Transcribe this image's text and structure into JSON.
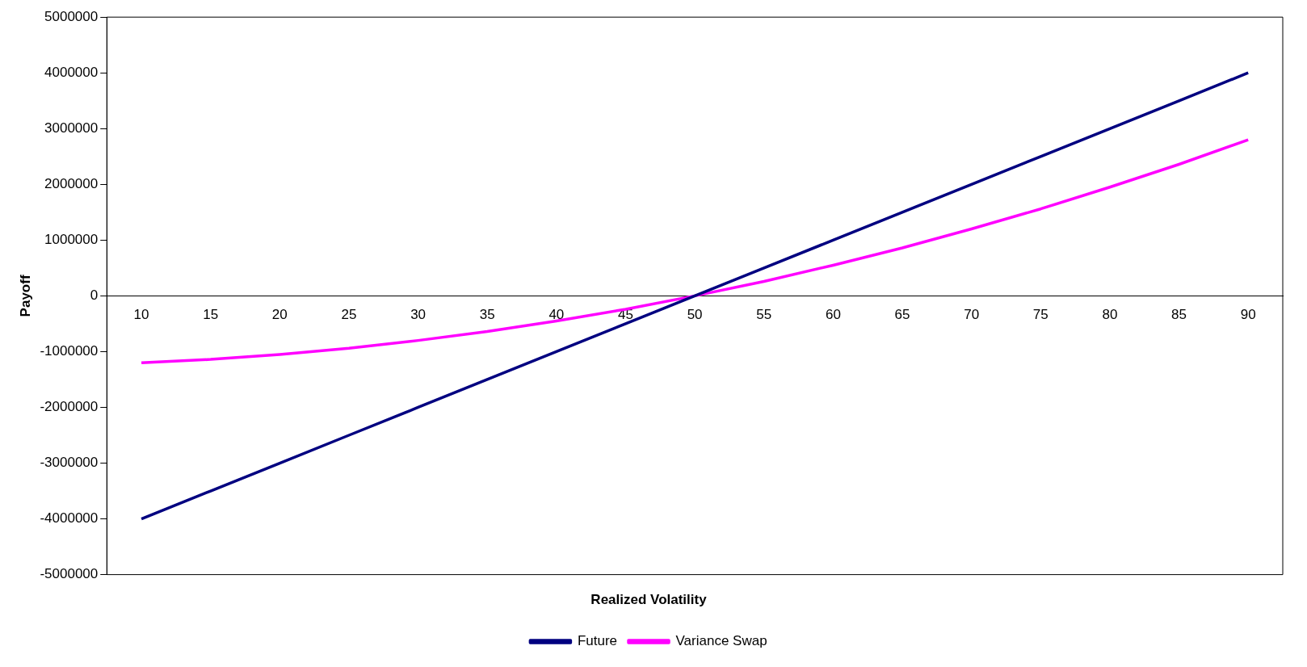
{
  "chart_data": {
    "type": "line",
    "xlabel": "Realized Volatility",
    "ylabel": "Payoff",
    "categories": [
      "10",
      "15",
      "20",
      "25",
      "30",
      "35",
      "40",
      "45",
      "50",
      "55",
      "60",
      "65",
      "70",
      "75",
      "80",
      "85",
      "90"
    ],
    "series": [
      {
        "name": "Future",
        "color": "#000080",
        "values": [
          -4000000,
          -3500000,
          -3000000,
          -2500000,
          -2000000,
          -1500000,
          -1000000,
          -500000,
          0,
          500000,
          1000000,
          1500000,
          2000000,
          2500000,
          3000000,
          3500000,
          4000000
        ]
      },
      {
        "name": "Variance Swap",
        "color": "#ff00ff",
        "values": [
          -1200000,
          -1140000,
          -1050000,
          -940000,
          -800000,
          -640000,
          -450000,
          -240000,
          0,
          260000,
          550000,
          860000,
          1200000,
          1560000,
          1950000,
          2360000,
          2800000
        ]
      }
    ],
    "ylim": [
      -5000000,
      5000000
    ],
    "yticks": [
      -5000000,
      -4000000,
      -3000000,
      -2000000,
      -1000000,
      0,
      1000000,
      2000000,
      3000000,
      4000000,
      5000000
    ],
    "grid": false,
    "legend": "bottom",
    "marker": "none",
    "line_style": "solid"
  }
}
